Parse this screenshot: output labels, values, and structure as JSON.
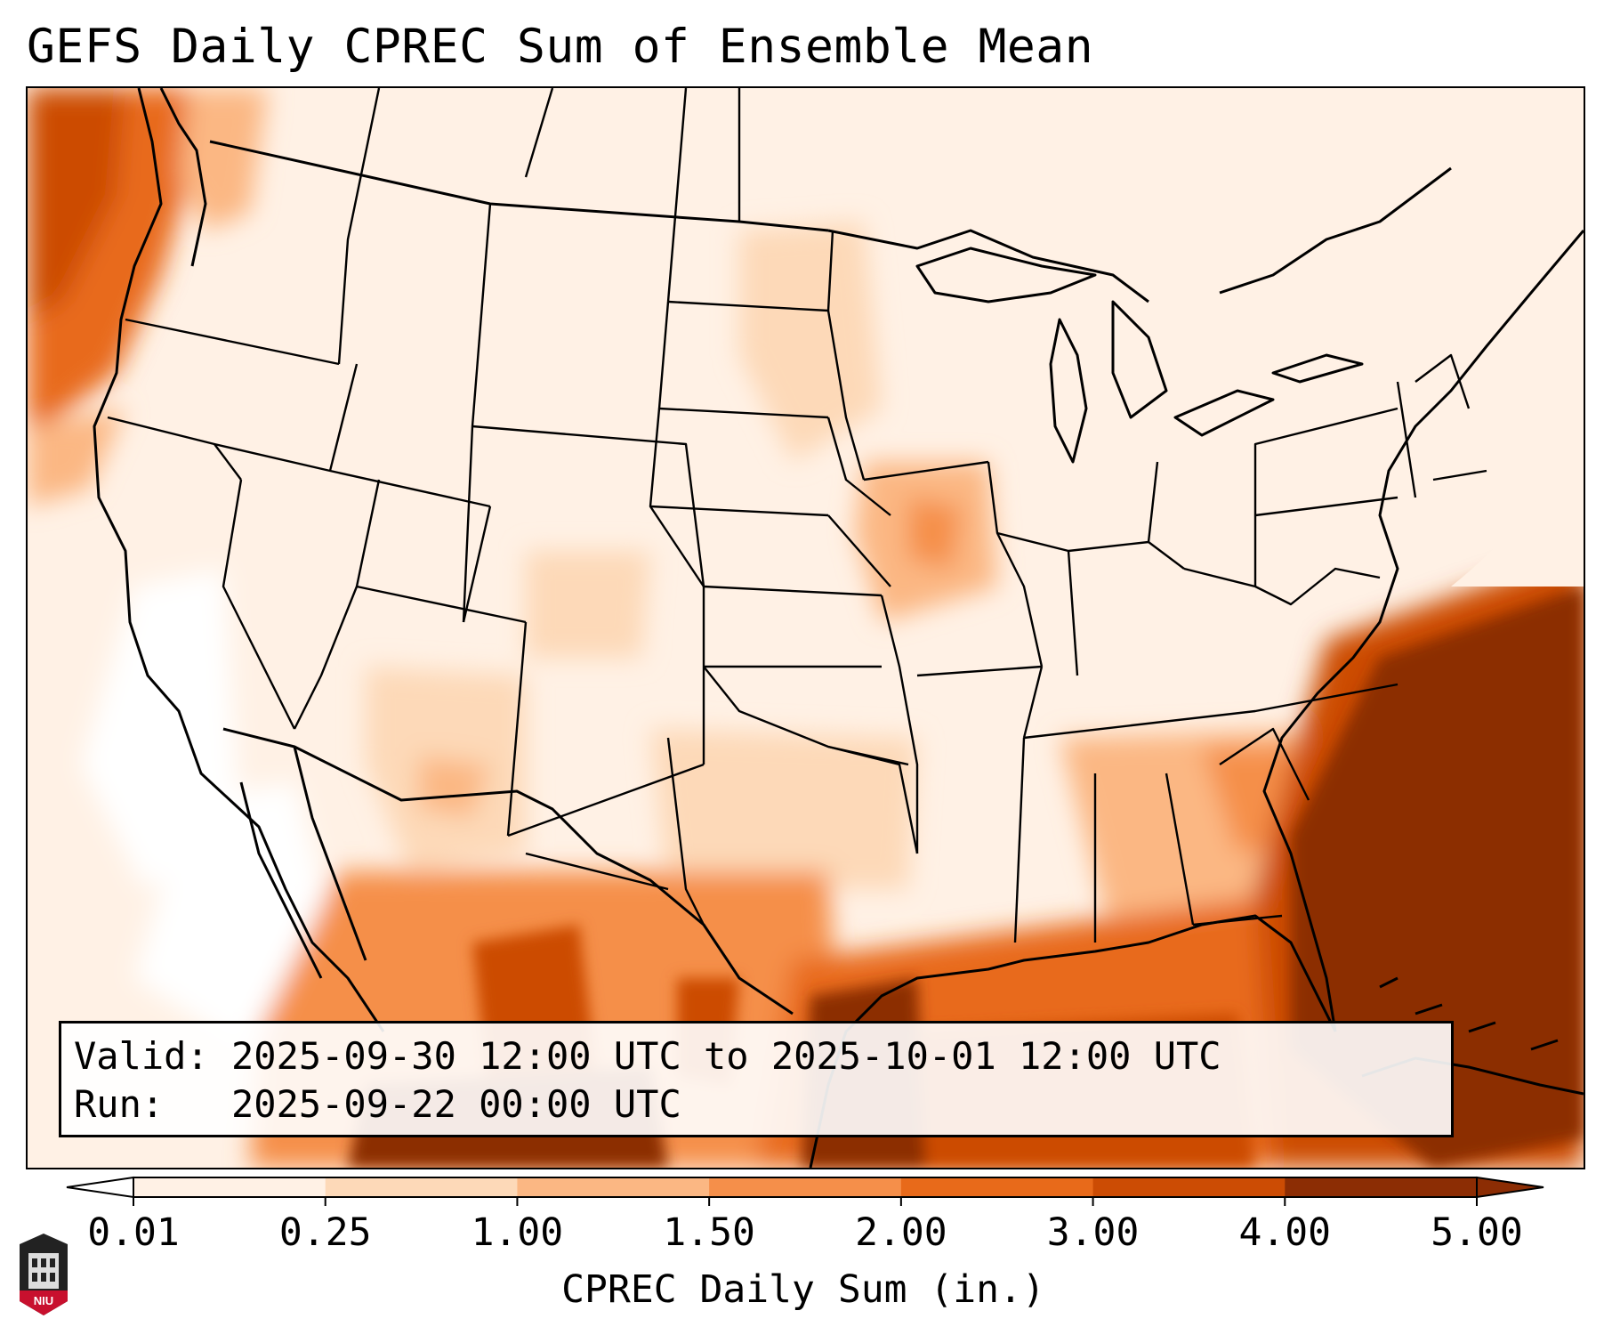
{
  "title": "GEFS Daily CPREC Sum of Ensemble Mean",
  "info": {
    "valid_line": "Valid: 2025-09-30 12:00 UTC to 2025-10-01 12:00 UTC",
    "run_line": "Run:   2025-09-22 00:00 UTC"
  },
  "colorbar": {
    "label": "CPREC Daily Sum (in.)",
    "ticks": [
      "0.01",
      "0.25",
      "1.00",
      "1.50",
      "2.00",
      "3.00",
      "4.00",
      "5.00"
    ],
    "colors": [
      "#fff1e5",
      "#fdd9b8",
      "#fbb783",
      "#f58f4a",
      "#e86a1a",
      "#cc4c04",
      "#8c2d04"
    ]
  },
  "logo": {
    "text": "NIU",
    "color": "#c8102e"
  },
  "map": {
    "projection": "Lambert Conformal",
    "region": "CONUS",
    "variable": "CPREC",
    "boundaries": [
      "state",
      "country",
      "coastline"
    ]
  }
}
